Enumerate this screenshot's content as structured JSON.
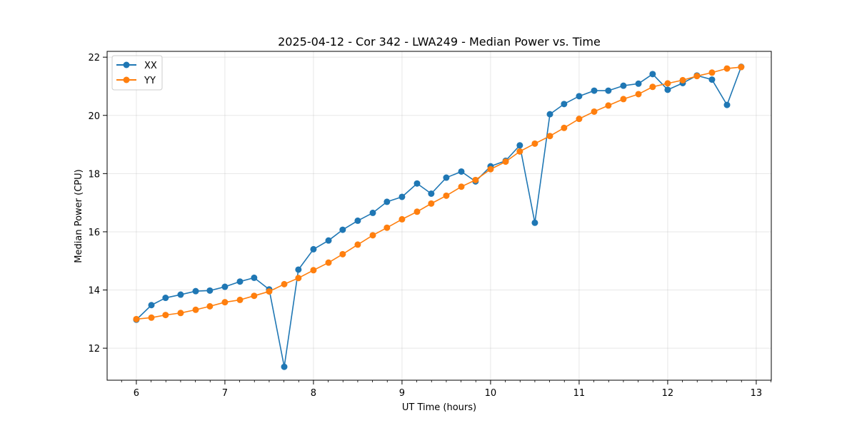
{
  "chart_data": {
    "type": "line",
    "title": "2025-04-12 - Cor 342 - LWA249 - Median Power vs. Time",
    "xlabel": "UT Time (hours)",
    "ylabel": "Median Power (CPU)",
    "xlim": [
      5.67,
      13.17
    ],
    "ylim": [
      10.9,
      22.2
    ],
    "xticks": [
      6,
      7,
      8,
      9,
      10,
      11,
      12,
      13
    ],
    "yticks": [
      12,
      14,
      16,
      18,
      20,
      22
    ],
    "grid": true,
    "legend_position": "top-left",
    "x": [
      6.0,
      6.17,
      6.33,
      6.5,
      6.67,
      6.83,
      7.0,
      7.17,
      7.33,
      7.5,
      7.67,
      7.83,
      8.0,
      8.17,
      8.33,
      8.5,
      8.67,
      8.83,
      9.0,
      9.17,
      9.33,
      9.5,
      9.67,
      9.83,
      10.0,
      10.17,
      10.33,
      10.5,
      10.67,
      10.83,
      11.0,
      11.17,
      11.33,
      11.5,
      11.67,
      11.83,
      12.0,
      12.17,
      12.33,
      12.5,
      12.67,
      12.83
    ],
    "series": [
      {
        "name": "XX",
        "color": "#1f77b4",
        "values": [
          12.98,
          13.48,
          13.73,
          13.84,
          13.96,
          13.98,
          14.11,
          14.29,
          14.42,
          14.02,
          11.36,
          14.7,
          15.4,
          15.7,
          16.07,
          16.38,
          16.65,
          17.03,
          17.2,
          17.66,
          17.31,
          17.86,
          18.07,
          17.73,
          18.25,
          18.44,
          18.97,
          16.31,
          20.04,
          20.39,
          20.66,
          20.85,
          20.85,
          21.02,
          21.09,
          21.42,
          20.88,
          21.11,
          21.37,
          21.23,
          20.36,
          21.67
        ]
      },
      {
        "name": "YY",
        "color": "#ff7f0e",
        "values": [
          13.0,
          13.05,
          13.14,
          13.21,
          13.32,
          13.44,
          13.58,
          13.66,
          13.8,
          13.95,
          14.2,
          14.41,
          14.68,
          14.94,
          15.23,
          15.56,
          15.88,
          16.14,
          16.43,
          16.69,
          16.97,
          17.24,
          17.55,
          17.78,
          18.15,
          18.41,
          18.76,
          19.03,
          19.29,
          19.57,
          19.88,
          20.13,
          20.34,
          20.56,
          20.73,
          20.98,
          21.1,
          21.21,
          21.35,
          21.47,
          21.61,
          21.66
        ]
      }
    ]
  }
}
